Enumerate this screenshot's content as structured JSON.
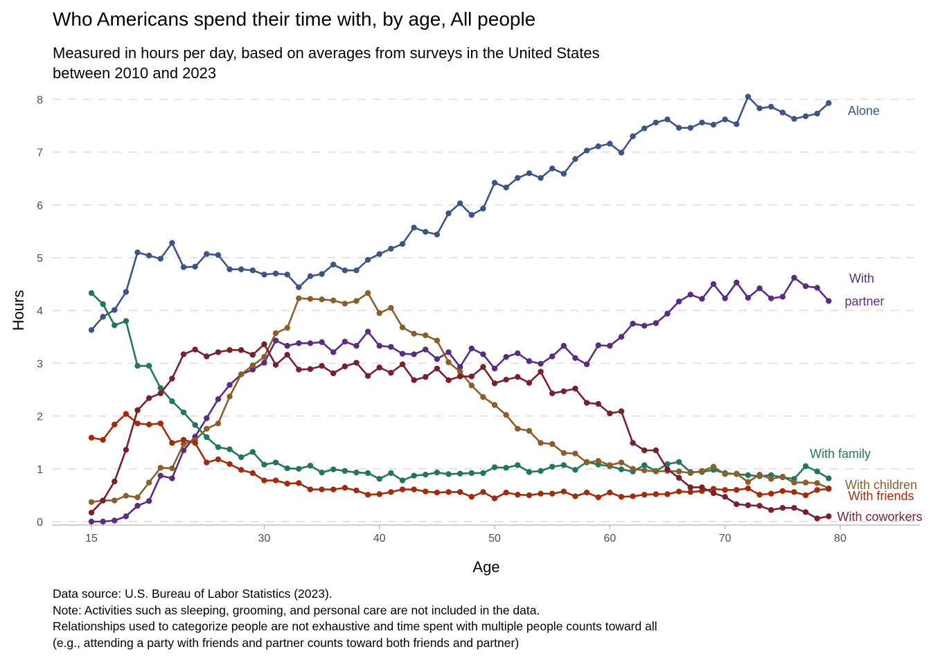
{
  "chart_data": {
    "type": "line",
    "title": "Who Americans spend their time with, by age, All people",
    "subtitle_lines": [
      "Measured in hours per day, based on averages from surveys in the United States",
      "between 2010 and 2023"
    ],
    "xlabel": "Age",
    "ylabel": "Hours",
    "xlim": [
      13,
      88
    ],
    "ylim": [
      0,
      8.1
    ],
    "x_ticks": [
      15,
      30,
      40,
      50,
      60,
      70,
      80
    ],
    "y_ticks": [
      0,
      1,
      2,
      3,
      4,
      5,
      6,
      7,
      8
    ],
    "grid": "horizontal dashed",
    "legend": "direct labels at right",
    "x": [
      15,
      16,
      17,
      18,
      19,
      20,
      21,
      22,
      23,
      24,
      25,
      26,
      27,
      28,
      29,
      30,
      31,
      32,
      33,
      34,
      35,
      36,
      37,
      38,
      39,
      40,
      41,
      42,
      43,
      44,
      45,
      46,
      47,
      48,
      49,
      50,
      51,
      52,
      53,
      54,
      55,
      56,
      57,
      58,
      59,
      60,
      61,
      62,
      63,
      64,
      65,
      66,
      67,
      68,
      69,
      70,
      71,
      72,
      73,
      74,
      75,
      76,
      77,
      78,
      79
    ],
    "series": [
      {
        "name": "Alone",
        "label_lines": [
          "Alone"
        ],
        "color": "#3c5488",
        "values": [
          3.63,
          3.88,
          4.01,
          4.35,
          5.1,
          5.04,
          4.98,
          5.28,
          4.82,
          4.83,
          5.07,
          5.05,
          4.78,
          4.78,
          4.76,
          4.68,
          4.7,
          4.68,
          4.44,
          4.65,
          4.69,
          4.87,
          4.76,
          4.76,
          4.96,
          5.07,
          5.17,
          5.26,
          5.57,
          5.49,
          5.44,
          5.84,
          6.03,
          5.81,
          5.93,
          6.42,
          6.33,
          6.51,
          6.6,
          6.51,
          6.69,
          6.59,
          6.87,
          7.03,
          7.11,
          7.16,
          6.99,
          7.3,
          7.45,
          7.56,
          7.62,
          7.46,
          7.46,
          7.56,
          7.52,
          7.62,
          7.53,
          8.05,
          7.83,
          7.86,
          7.75,
          7.63,
          7.68,
          7.73,
          7.93
        ]
      },
      {
        "name": "With partner",
        "label_lines": [
          "With",
          "partner"
        ],
        "color": "#5b2c83",
        "values": [
          0.0,
          0.0,
          0.02,
          0.1,
          0.3,
          0.39,
          0.87,
          0.82,
          1.35,
          1.61,
          1.96,
          2.32,
          2.59,
          2.79,
          2.88,
          3.01,
          3.43,
          3.33,
          3.38,
          3.38,
          3.4,
          3.21,
          3.41,
          3.33,
          3.6,
          3.33,
          3.31,
          3.18,
          3.17,
          3.26,
          3.08,
          3.21,
          2.93,
          3.28,
          3.17,
          2.9,
          3.12,
          3.19,
          3.04,
          2.99,
          3.13,
          3.33,
          3.1,
          2.98,
          3.34,
          3.33,
          3.5,
          3.75,
          3.71,
          3.76,
          3.94,
          4.17,
          4.3,
          4.22,
          4.5,
          4.23,
          4.53,
          4.24,
          4.42,
          4.23,
          4.26,
          4.62,
          4.46,
          4.43,
          4.18
        ]
      },
      {
        "name": "With family",
        "label_lines": [
          "With family"
        ],
        "color": "#22775a",
        "values": [
          4.33,
          4.12,
          3.72,
          3.8,
          2.95,
          2.95,
          2.53,
          2.28,
          2.07,
          1.83,
          1.6,
          1.41,
          1.37,
          1.22,
          1.32,
          1.08,
          1.12,
          1.01,
          1.0,
          1.06,
          0.93,
          0.99,
          0.96,
          0.93,
          0.92,
          0.81,
          0.92,
          0.78,
          0.87,
          0.89,
          0.93,
          0.9,
          0.91,
          0.92,
          0.92,
          1.03,
          1.02,
          1.07,
          0.94,
          0.96,
          1.04,
          1.07,
          0.98,
          1.13,
          1.08,
          1.05,
          0.99,
          0.95,
          1.07,
          0.96,
          1.09,
          1.13,
          0.94,
          0.94,
          0.98,
          0.92,
          0.9,
          0.88,
          0.86,
          0.88,
          0.84,
          0.81,
          1.05,
          0.95,
          0.82
        ]
      },
      {
        "name": "With children",
        "label_lines": [
          "With children"
        ],
        "color": "#8c5e2a",
        "values": [
          0.37,
          0.4,
          0.4,
          0.49,
          0.46,
          0.74,
          1.02,
          1.01,
          1.47,
          1.54,
          1.76,
          1.86,
          2.37,
          2.79,
          2.96,
          3.12,
          3.57,
          3.67,
          4.23,
          4.22,
          4.21,
          4.19,
          4.13,
          4.18,
          4.33,
          3.95,
          4.05,
          3.68,
          3.56,
          3.53,
          3.43,
          3.02,
          2.84,
          2.58,
          2.36,
          2.21,
          2.02,
          1.76,
          1.72,
          1.49,
          1.47,
          1.3,
          1.29,
          1.12,
          1.15,
          1.07,
          1.12,
          1.0,
          0.97,
          0.95,
          0.96,
          0.95,
          0.92,
          0.96,
          1.04,
          0.9,
          0.91,
          0.75,
          0.89,
          0.81,
          0.85,
          0.74,
          0.74,
          0.73,
          0.63
        ]
      },
      {
        "name": "With friends",
        "label_lines": [
          "With friends"
        ],
        "color": "#a52a0a",
        "values": [
          1.59,
          1.55,
          1.84,
          2.04,
          1.86,
          1.84,
          1.86,
          1.49,
          1.55,
          1.49,
          1.12,
          1.18,
          1.09,
          0.98,
          0.92,
          0.78,
          0.78,
          0.72,
          0.73,
          0.61,
          0.61,
          0.61,
          0.64,
          0.59,
          0.51,
          0.52,
          0.56,
          0.61,
          0.61,
          0.57,
          0.55,
          0.56,
          0.56,
          0.47,
          0.56,
          0.44,
          0.55,
          0.51,
          0.5,
          0.53,
          0.53,
          0.57,
          0.48,
          0.55,
          0.46,
          0.55,
          0.47,
          0.48,
          0.51,
          0.52,
          0.52,
          0.57,
          0.56,
          0.58,
          0.62,
          0.6,
          0.6,
          0.63,
          0.51,
          0.53,
          0.58,
          0.56,
          0.5,
          0.6,
          0.62
        ]
      },
      {
        "name": "With coworkers",
        "label_lines": [
          "With coworkers"
        ],
        "color": "#7a1f2e",
        "values": [
          0.17,
          0.4,
          0.76,
          1.36,
          2.11,
          2.34,
          2.43,
          2.71,
          3.17,
          3.26,
          3.13,
          3.21,
          3.25,
          3.25,
          3.16,
          3.36,
          2.97,
          3.16,
          2.88,
          2.89,
          2.95,
          2.81,
          2.94,
          3.01,
          2.76,
          2.92,
          2.82,
          2.98,
          2.68,
          2.74,
          2.9,
          2.68,
          2.75,
          2.75,
          2.93,
          2.62,
          2.69,
          2.74,
          2.63,
          2.84,
          2.43,
          2.47,
          2.52,
          2.25,
          2.23,
          2.05,
          2.09,
          1.49,
          1.35,
          1.35,
          0.99,
          0.83,
          0.65,
          0.65,
          0.54,
          0.47,
          0.33,
          0.31,
          0.3,
          0.22,
          0.26,
          0.26,
          0.18,
          0.06,
          0.1
        ]
      }
    ],
    "footer_lines": [
      "Data source: U.S. Bureau of Labor Statistics (2023).",
      "Note: Activities such as sleeping, grooming, and personal care are not included in the data.",
      "Relationships used to categorize people are not exhaustive and time spent with multiple people counts toward all",
      "(e.g., attending a party with friends and partner counts toward both friends and partner)"
    ]
  }
}
